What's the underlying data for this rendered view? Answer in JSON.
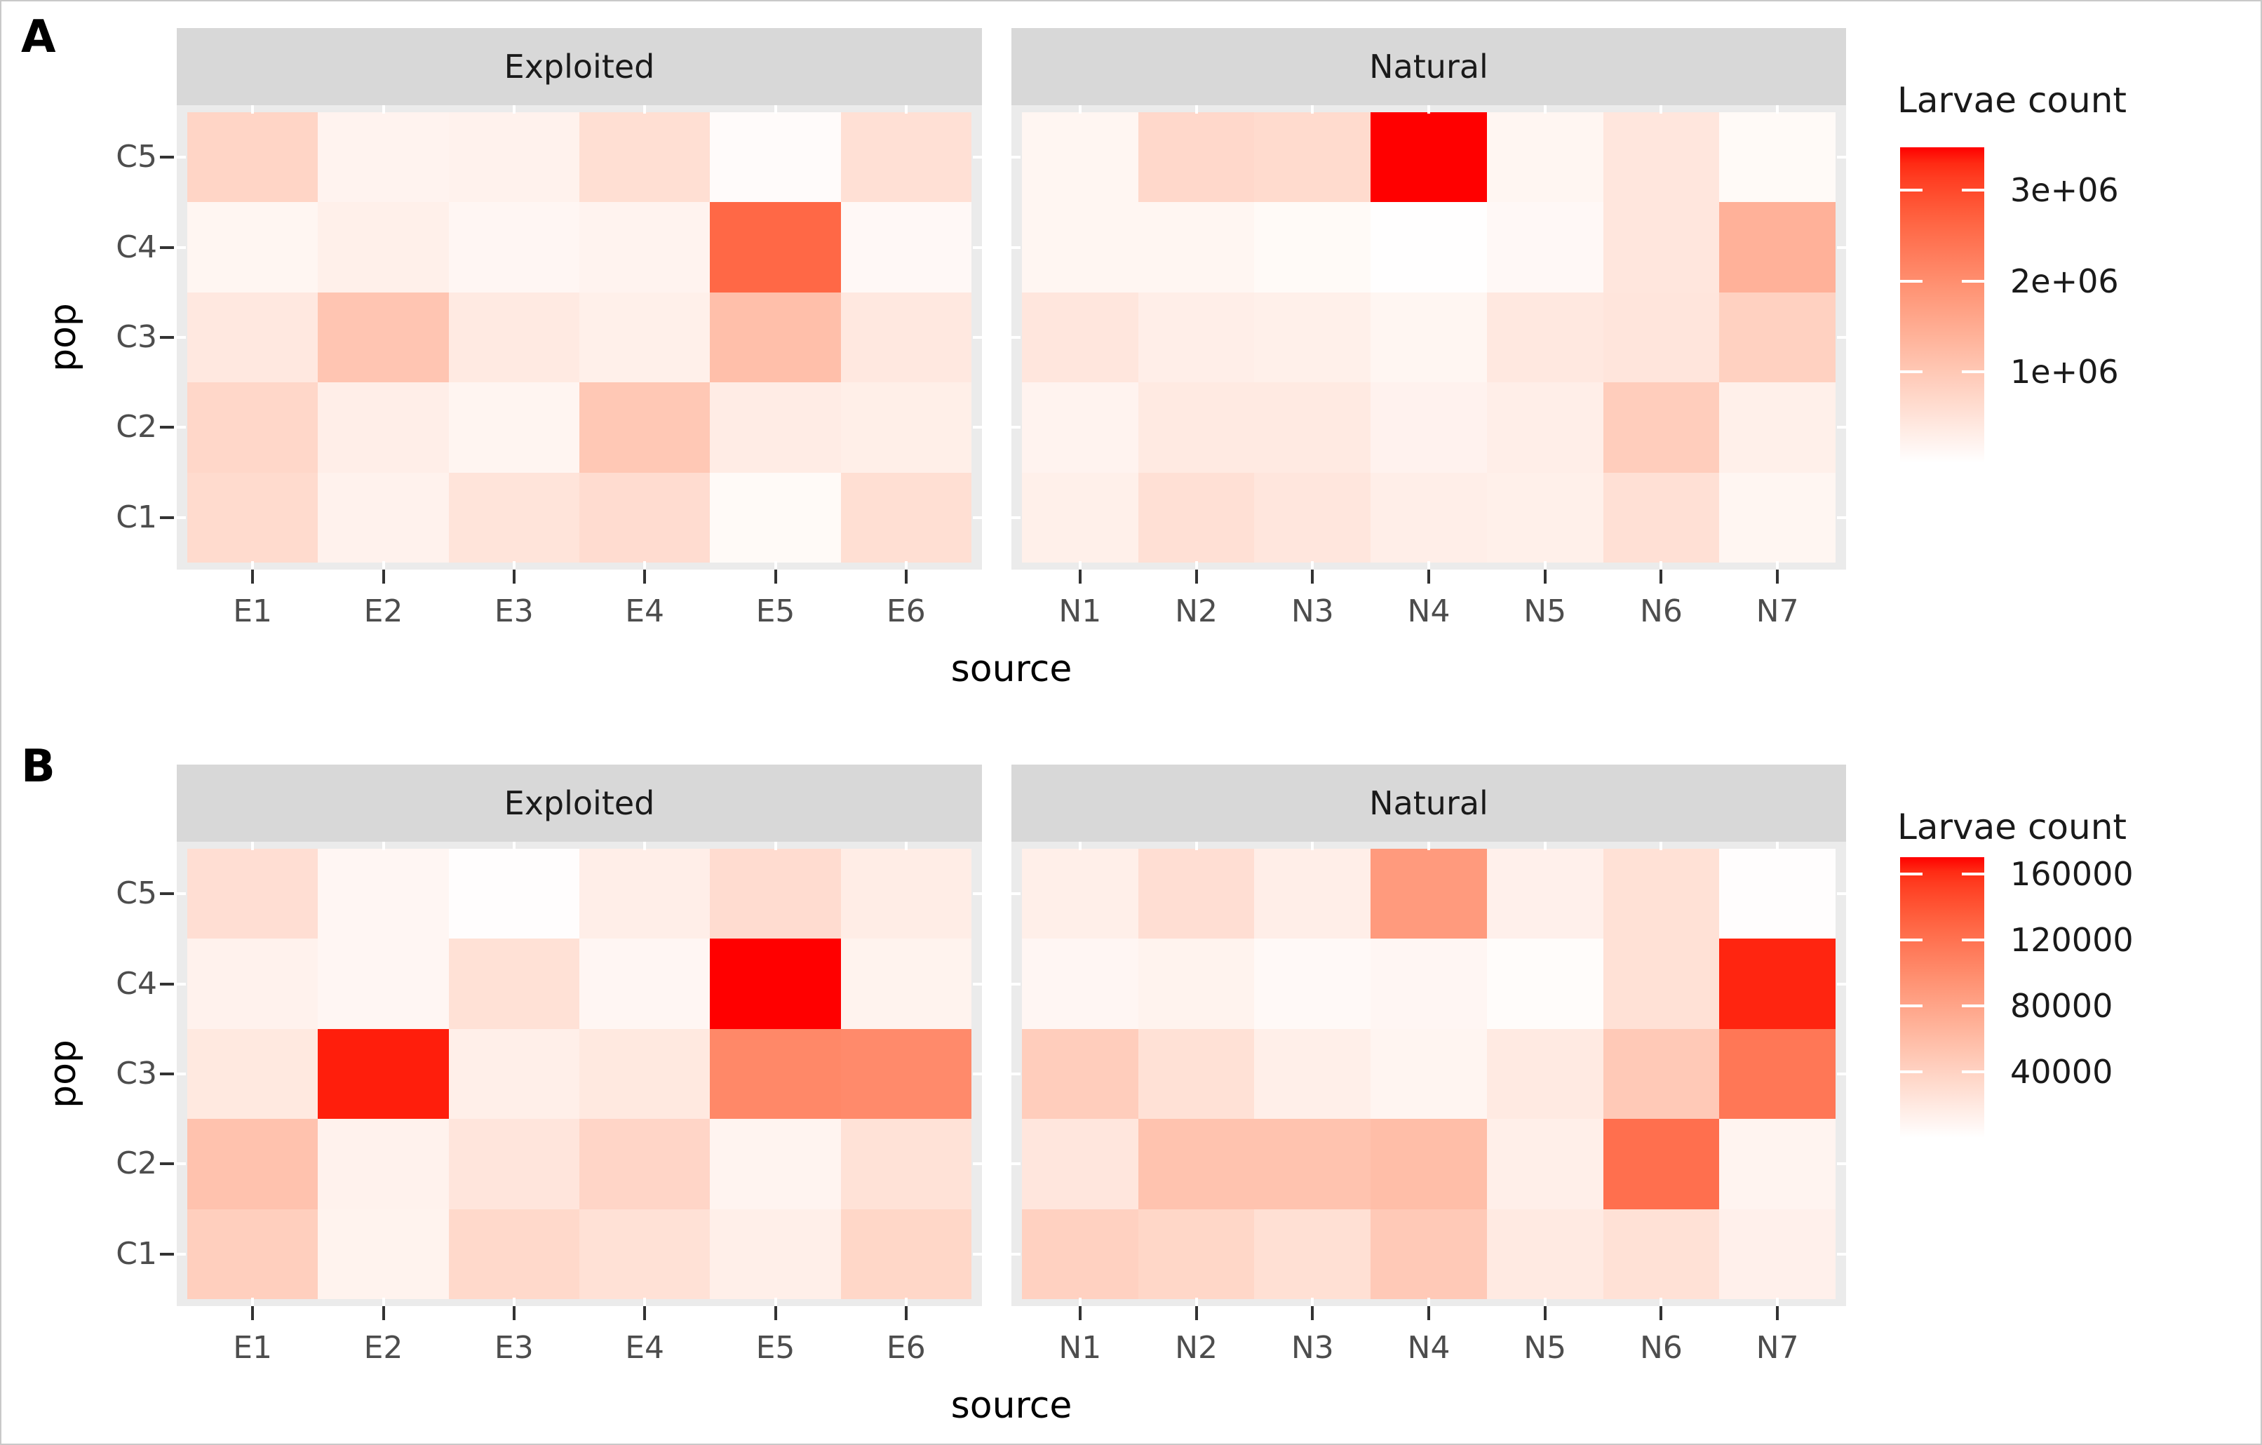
{
  "colors": {
    "background": "#FFFFFF",
    "panel_background": "#EBEBEB",
    "strip_background": "#D8D8D8",
    "axis_text": "#4D4D4D",
    "tick_mark": "#333333",
    "gradient_low": "#FFFFFF",
    "gradient_high": "#FF0000"
  },
  "chart_data": [
    {
      "type": "heatmap",
      "panel_label": "A",
      "xlabel": "source",
      "ylabel": "pop",
      "legend_title": "Larvae count",
      "fill_scale": {
        "low": "#FFFFFF",
        "high": "#FF0000",
        "domain": [
          0,
          3470000
        ],
        "legend_ticks": [
          {
            "value": 3000000,
            "label": "3e+06"
          },
          {
            "value": 2000000,
            "label": "2e+06"
          },
          {
            "value": 1000000,
            "label": "1e+06"
          }
        ]
      },
      "rows": [
        "C5",
        "C4",
        "C3",
        "C2",
        "C1"
      ],
      "facets": [
        {
          "label": "Exploited",
          "columns": [
            "E1",
            "E2",
            "E3",
            "E4",
            "E5",
            "E6"
          ],
          "values": {
            "C5": [
              760000,
              210000,
              240000,
              590000,
              70000,
              560000
            ],
            "C4": [
              170000,
              280000,
              160000,
              210000,
              2600000,
              120000
            ],
            "C3": [
              420000,
              1050000,
              380000,
              280000,
              1150000,
              420000
            ],
            "C2": [
              730000,
              310000,
              190000,
              1000000,
              350000,
              300000
            ],
            "C1": [
              660000,
              240000,
              490000,
              630000,
              100000,
              590000
            ]
          }
        },
        {
          "label": "Natural",
          "columns": [
            "N1",
            "N2",
            "N3",
            "N4",
            "N5",
            "N6",
            "N7"
          ],
          "values": {
            "C5": [
              170000,
              700000,
              660000,
              3470000,
              170000,
              450000,
              100000
            ],
            "C4": [
              170000,
              170000,
              100000,
              10000,
              120000,
              450000,
              1400000
            ],
            "C3": [
              450000,
              310000,
              280000,
              170000,
              420000,
              470000,
              830000
            ],
            "C2": [
              210000,
              380000,
              380000,
              230000,
              310000,
              900000,
              280000
            ],
            "C1": [
              280000,
              560000,
              450000,
              310000,
              280000,
              560000,
              170000
            ]
          }
        }
      ]
    },
    {
      "type": "heatmap",
      "panel_label": "B",
      "xlabel": "source",
      "ylabel": "pop",
      "legend_title": "Larvae count",
      "fill_scale": {
        "low": "#FFFFFF",
        "high": "#FF0000",
        "domain": [
          0,
          170000
        ],
        "legend_ticks": [
          {
            "value": 160000,
            "label": "160000"
          },
          {
            "value": 120000,
            "label": "120000"
          },
          {
            "value": 80000,
            "label": "80000"
          },
          {
            "value": 40000,
            "label": "40000"
          }
        ]
      },
      "rows": [
        "C5",
        "C4",
        "C3",
        "C2",
        "C1"
      ],
      "facets": [
        {
          "label": "Exploited",
          "columns": [
            "E1",
            "E2",
            "E3",
            "E4",
            "E5",
            "E6"
          ],
          "values": {
            "C5": [
              29000,
              8000,
              1500,
              15000,
              31000,
              16000
            ],
            "C4": [
              12000,
              8000,
              27000,
              8000,
              170000,
              11000
            ],
            "C3": [
              20000,
              165000,
              14000,
              20000,
              103000,
              101000
            ],
            "C2": [
              54000,
              12000,
              23000,
              37000,
              10000,
              26000
            ],
            "C1": [
              43000,
              11000,
              34000,
              27000,
              14000,
              36000
            ]
          }
        },
        {
          "label": "Natural",
          "columns": [
            "N1",
            "N2",
            "N3",
            "N4",
            "N5",
            "N6",
            "N7"
          ],
          "values": {
            "C5": [
              14000,
              29000,
              15000,
              88000,
              13000,
              27000,
              1500
            ],
            "C4": [
              8000,
              11000,
              5000,
              8000,
              3000,
              27000,
              163000
            ],
            "C3": [
              44000,
              27000,
              14000,
              9000,
              19000,
              48000,
              116000
            ],
            "C2": [
              22000,
              53000,
              53000,
              58000,
              14000,
              122000,
              10000
            ],
            "C1": [
              41000,
              36000,
              28000,
              48000,
              19000,
              27000,
              13000
            ]
          }
        }
      ]
    }
  ]
}
